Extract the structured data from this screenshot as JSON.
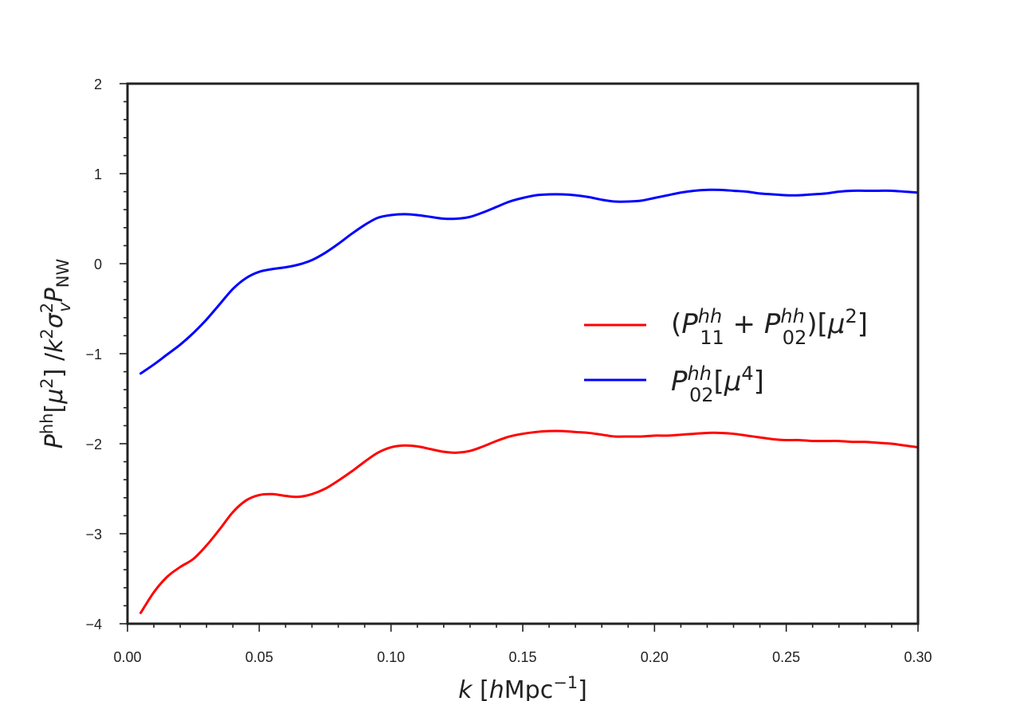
{
  "chart_data": {
    "type": "line",
    "xlabel_parts": {
      "var": "k",
      "unit_open": "[",
      "unit_h": "h",
      "unit_rest": "Mpc",
      "unit_exp": "−1",
      "unit_close": "]"
    },
    "ylabel_parts": {
      "p": "P",
      "p_sup": "hh",
      "mu_open": "[",
      "mu": "μ",
      "mu_exp": "2",
      "mu_close": "]",
      "slash": " /",
      "k": "k",
      "k_exp": "2",
      "sigma": "σ",
      "sigma_sup": "2",
      "sigma_sub": "v",
      "pn": "P",
      "pn_sub": "NW"
    },
    "xlim": [
      0.0,
      0.3
    ],
    "ylim": [
      -4,
      2
    ],
    "x_ticks": [
      0.0,
      0.05,
      0.1,
      0.15,
      0.2,
      0.25,
      0.3
    ],
    "x_tick_labels": [
      "0.00",
      "0.05",
      "0.10",
      "0.15",
      "0.20",
      "0.25",
      "0.30"
    ],
    "y_ticks": [
      -4,
      -3,
      -2,
      -1,
      0,
      1,
      2
    ],
    "y_tick_labels": [
      "−4",
      "−3",
      "−2",
      "−1",
      "0",
      "1",
      "2"
    ],
    "grid": false,
    "legend_position": "right-center",
    "series": [
      {
        "legend": {
          "open": "(",
          "p1": "P",
          "p1_sup": "hh",
          "p1_sub": "11",
          "plus": " + ",
          "p2": "P",
          "p2_sup": "hh",
          "p2_sub": "02",
          "close": ")[",
          "mu": "μ",
          "mu_exp": "2",
          "end": "]"
        },
        "color": "#ff0000",
        "points": [
          [
            0.005,
            -3.88
          ],
          [
            0.01,
            -3.65
          ],
          [
            0.015,
            -3.48
          ],
          [
            0.02,
            -3.37
          ],
          [
            0.025,
            -3.28
          ],
          [
            0.03,
            -3.13
          ],
          [
            0.035,
            -2.95
          ],
          [
            0.04,
            -2.76
          ],
          [
            0.045,
            -2.63
          ],
          [
            0.05,
            -2.57
          ],
          [
            0.055,
            -2.56
          ],
          [
            0.06,
            -2.58
          ],
          [
            0.065,
            -2.59
          ],
          [
            0.07,
            -2.56
          ],
          [
            0.075,
            -2.5
          ],
          [
            0.08,
            -2.41
          ],
          [
            0.085,
            -2.31
          ],
          [
            0.09,
            -2.2
          ],
          [
            0.095,
            -2.1
          ],
          [
            0.1,
            -2.04
          ],
          [
            0.105,
            -2.02
          ],
          [
            0.11,
            -2.03
          ],
          [
            0.115,
            -2.06
          ],
          [
            0.12,
            -2.09
          ],
          [
            0.125,
            -2.1
          ],
          [
            0.13,
            -2.08
          ],
          [
            0.135,
            -2.03
          ],
          [
            0.14,
            -1.97
          ],
          [
            0.145,
            -1.92
          ],
          [
            0.15,
            -1.89
          ],
          [
            0.155,
            -1.87
          ],
          [
            0.16,
            -1.86
          ],
          [
            0.165,
            -1.86
          ],
          [
            0.17,
            -1.87
          ],
          [
            0.175,
            -1.88
          ],
          [
            0.18,
            -1.9
          ],
          [
            0.185,
            -1.92
          ],
          [
            0.19,
            -1.92
          ],
          [
            0.195,
            -1.92
          ],
          [
            0.2,
            -1.91
          ],
          [
            0.205,
            -1.91
          ],
          [
            0.21,
            -1.9
          ],
          [
            0.215,
            -1.89
          ],
          [
            0.22,
            -1.88
          ],
          [
            0.225,
            -1.88
          ],
          [
            0.23,
            -1.89
          ],
          [
            0.235,
            -1.91
          ],
          [
            0.24,
            -1.93
          ],
          [
            0.245,
            -1.95
          ],
          [
            0.25,
            -1.96
          ],
          [
            0.255,
            -1.96
          ],
          [
            0.26,
            -1.97
          ],
          [
            0.265,
            -1.97
          ],
          [
            0.27,
            -1.97
          ],
          [
            0.275,
            -1.98
          ],
          [
            0.28,
            -1.98
          ],
          [
            0.285,
            -1.99
          ],
          [
            0.29,
            -2.0
          ],
          [
            0.295,
            -2.02
          ],
          [
            0.3,
            -2.04
          ]
        ]
      },
      {
        "legend": {
          "p": "P",
          "p_sup": "hh",
          "p_sub": "02",
          "open": "[",
          "mu": "μ",
          "mu_exp": "4",
          "close": "]"
        },
        "color": "#0000ff",
        "points": [
          [
            0.005,
            -1.22
          ],
          [
            0.01,
            -1.12
          ],
          [
            0.015,
            -1.01
          ],
          [
            0.02,
            -0.9
          ],
          [
            0.025,
            -0.77
          ],
          [
            0.03,
            -0.62
          ],
          [
            0.035,
            -0.45
          ],
          [
            0.04,
            -0.28
          ],
          [
            0.045,
            -0.16
          ],
          [
            0.05,
            -0.09
          ],
          [
            0.055,
            -0.06
          ],
          [
            0.06,
            -0.04
          ],
          [
            0.065,
            -0.01
          ],
          [
            0.07,
            0.04
          ],
          [
            0.075,
            0.12
          ],
          [
            0.08,
            0.22
          ],
          [
            0.085,
            0.33
          ],
          [
            0.09,
            0.43
          ],
          [
            0.095,
            0.51
          ],
          [
            0.1,
            0.54
          ],
          [
            0.105,
            0.55
          ],
          [
            0.11,
            0.54
          ],
          [
            0.115,
            0.52
          ],
          [
            0.12,
            0.5
          ],
          [
            0.125,
            0.5
          ],
          [
            0.13,
            0.52
          ],
          [
            0.135,
            0.57
          ],
          [
            0.14,
            0.63
          ],
          [
            0.145,
            0.69
          ],
          [
            0.15,
            0.73
          ],
          [
            0.155,
            0.76
          ],
          [
            0.16,
            0.77
          ],
          [
            0.165,
            0.77
          ],
          [
            0.17,
            0.76
          ],
          [
            0.175,
            0.74
          ],
          [
            0.18,
            0.71
          ],
          [
            0.185,
            0.69
          ],
          [
            0.19,
            0.69
          ],
          [
            0.195,
            0.7
          ],
          [
            0.2,
            0.73
          ],
          [
            0.205,
            0.76
          ],
          [
            0.21,
            0.79
          ],
          [
            0.215,
            0.81
          ],
          [
            0.22,
            0.82
          ],
          [
            0.225,
            0.82
          ],
          [
            0.23,
            0.81
          ],
          [
            0.235,
            0.8
          ],
          [
            0.24,
            0.78
          ],
          [
            0.245,
            0.77
          ],
          [
            0.25,
            0.76
          ],
          [
            0.255,
            0.76
          ],
          [
            0.26,
            0.77
          ],
          [
            0.265,
            0.78
          ],
          [
            0.27,
            0.8
          ],
          [
            0.275,
            0.81
          ],
          [
            0.28,
            0.81
          ],
          [
            0.285,
            0.81
          ],
          [
            0.29,
            0.81
          ],
          [
            0.295,
            0.8
          ],
          [
            0.3,
            0.79
          ]
        ]
      }
    ]
  }
}
